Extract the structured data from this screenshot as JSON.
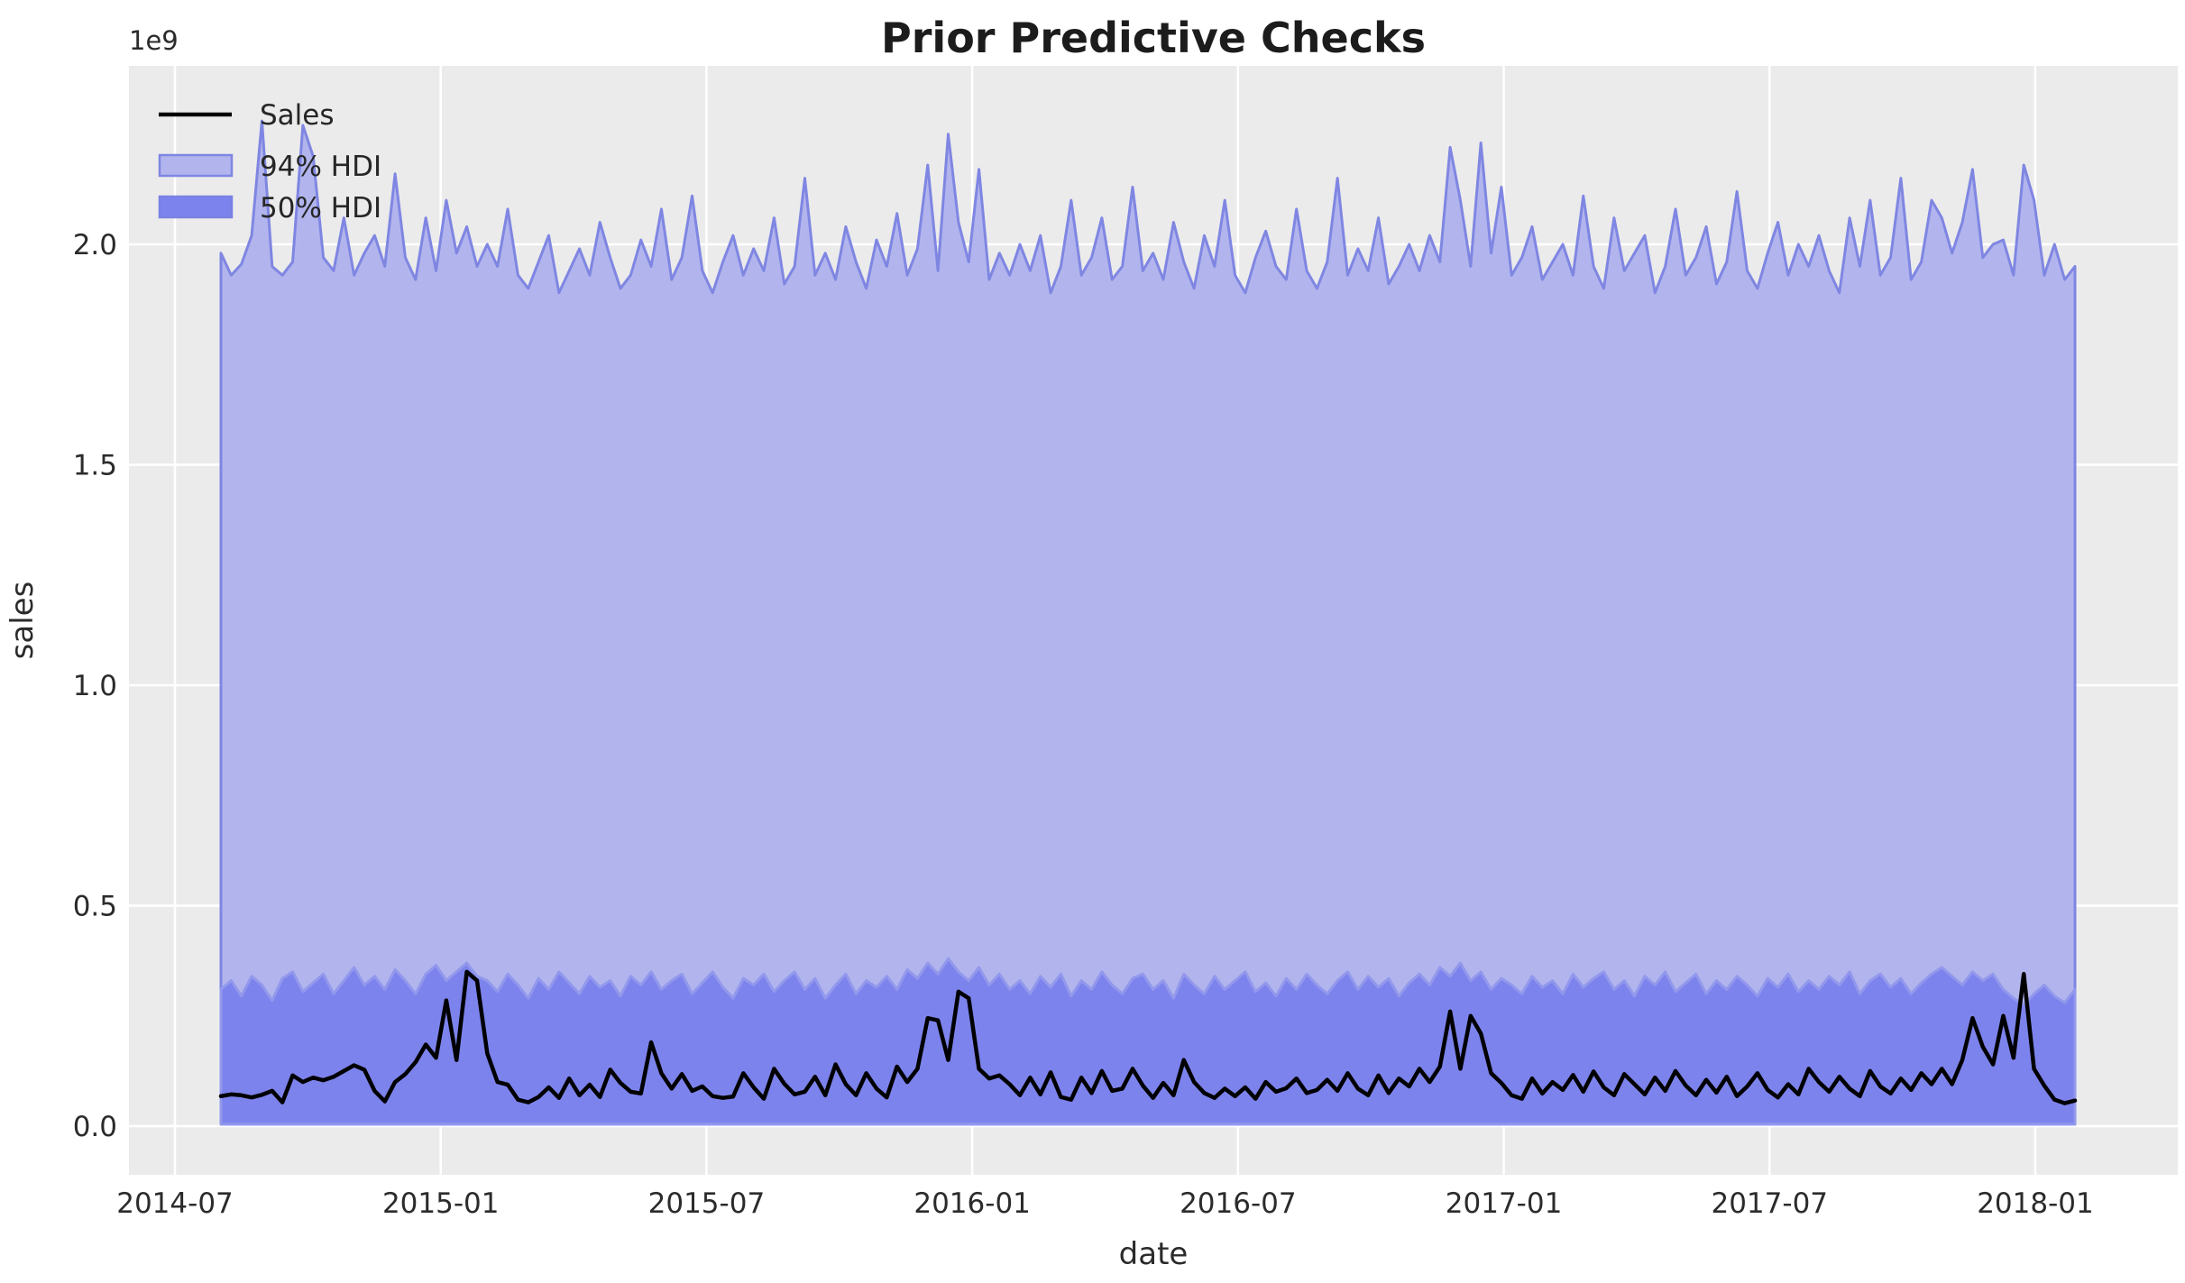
{
  "figure": {
    "background_color": "#ffffff",
    "axes_background_color": "#ebebeb",
    "gridline_color": "#ffffff"
  },
  "chart_data": {
    "type": "area",
    "title": "Prior Predictive Checks",
    "xlabel": "date",
    "ylabel": "sales",
    "y_offset_text": "1e9",
    "x_tick_labels": [
      "2014-07",
      "2015-01",
      "2015-07",
      "2016-01",
      "2016-07",
      "2017-01",
      "2017-07",
      "2018-01"
    ],
    "y_tick_labels": [
      "0.0",
      "0.5",
      "1.0",
      "1.5",
      "2.0"
    ],
    "y_tick_values": [
      0,
      0.5,
      1.0,
      1.5,
      2.0
    ],
    "y_unit": "1e9",
    "ylim": [
      -0.11,
      2.4
    ],
    "x_range": [
      "2014-08",
      "2018-02"
    ],
    "frequency": "weekly",
    "grid": true,
    "legend_position": "upper left",
    "series": [
      {
        "name": "Sales",
        "type": "line",
        "color": "#000000",
        "values": [
          0.068,
          0.072,
          0.07,
          0.065,
          0.071,
          0.08,
          0.054,
          0.115,
          0.1,
          0.11,
          0.104,
          0.112,
          0.125,
          0.138,
          0.128,
          0.08,
          0.056,
          0.1,
          0.118,
          0.145,
          0.185,
          0.155,
          0.285,
          0.15,
          0.35,
          0.33,
          0.165,
          0.1,
          0.094,
          0.06,
          0.054,
          0.066,
          0.088,
          0.064,
          0.108,
          0.07,
          0.094,
          0.066,
          0.128,
          0.098,
          0.078,
          0.074,
          0.19,
          0.12,
          0.085,
          0.118,
          0.08,
          0.09,
          0.068,
          0.064,
          0.067,
          0.12,
          0.088,
          0.062,
          0.13,
          0.096,
          0.072,
          0.078,
          0.112,
          0.07,
          0.14,
          0.095,
          0.07,
          0.12,
          0.085,
          0.065,
          0.135,
          0.1,
          0.13,
          0.245,
          0.24,
          0.15,
          0.305,
          0.29,
          0.13,
          0.108,
          0.115,
          0.095,
          0.07,
          0.11,
          0.072,
          0.122,
          0.066,
          0.06,
          0.11,
          0.075,
          0.125,
          0.08,
          0.085,
          0.13,
          0.092,
          0.064,
          0.098,
          0.07,
          0.15,
          0.1,
          0.075,
          0.064,
          0.085,
          0.068,
          0.088,
          0.062,
          0.1,
          0.078,
          0.086,
          0.108,
          0.075,
          0.082,
          0.105,
          0.08,
          0.12,
          0.085,
          0.07,
          0.115,
          0.075,
          0.108,
          0.09,
          0.13,
          0.1,
          0.135,
          0.26,
          0.13,
          0.25,
          0.21,
          0.12,
          0.098,
          0.07,
          0.062,
          0.108,
          0.074,
          0.1,
          0.082,
          0.116,
          0.078,
          0.124,
          0.088,
          0.07,
          0.118,
          0.095,
          0.072,
          0.11,
          0.08,
          0.125,
          0.092,
          0.07,
          0.105,
          0.076,
          0.112,
          0.068,
          0.09,
          0.12,
          0.082,
          0.065,
          0.095,
          0.072,
          0.13,
          0.1,
          0.078,
          0.112,
          0.085,
          0.068,
          0.125,
          0.09,
          0.074,
          0.108,
          0.082,
          0.12,
          0.095,
          0.13,
          0.095,
          0.15,
          0.245,
          0.18,
          0.14,
          0.25,
          0.155,
          0.345,
          0.13,
          0.092,
          0.06,
          0.052,
          0.058
        ]
      },
      {
        "name": "94% HDI",
        "type": "band",
        "fill_color": "#b2b5ed",
        "edge_color": "#7f86e2",
        "lower": 0.01,
        "upper": [
          1.98,
          1.93,
          1.955,
          2.02,
          2.28,
          1.95,
          1.93,
          1.96,
          2.27,
          2.2,
          1.97,
          1.94,
          2.06,
          1.93,
          1.98,
          2.02,
          1.95,
          2.16,
          1.97,
          1.92,
          2.06,
          1.94,
          2.1,
          1.98,
          2.04,
          1.95,
          2.0,
          1.95,
          2.08,
          1.93,
          1.9,
          1.96,
          2.02,
          1.89,
          1.94,
          1.99,
          1.93,
          2.05,
          1.97,
          1.9,
          1.93,
          2.01,
          1.95,
          2.08,
          1.92,
          1.97,
          2.11,
          1.94,
          1.89,
          1.96,
          2.02,
          1.93,
          1.99,
          1.94,
          2.06,
          1.91,
          1.95,
          2.15,
          1.93,
          1.98,
          1.92,
          2.04,
          1.96,
          1.9,
          2.01,
          1.95,
          2.07,
          1.93,
          1.99,
          2.18,
          1.94,
          2.25,
          2.05,
          1.96,
          2.17,
          1.92,
          1.98,
          1.93,
          2.0,
          1.94,
          2.02,
          1.89,
          1.95,
          2.1,
          1.93,
          1.97,
          2.06,
          1.92,
          1.95,
          2.13,
          1.94,
          1.98,
          1.92,
          2.05,
          1.96,
          1.9,
          2.02,
          1.95,
          2.1,
          1.93,
          1.89,
          1.97,
          2.03,
          1.95,
          1.92,
          2.08,
          1.94,
          1.9,
          1.96,
          2.15,
          1.93,
          1.99,
          1.94,
          2.06,
          1.91,
          1.95,
          2.0,
          1.94,
          2.02,
          1.96,
          2.22,
          2.1,
          1.95,
          2.23,
          1.98,
          2.13,
          1.93,
          1.97,
          2.04,
          1.92,
          1.96,
          2.0,
          1.93,
          2.11,
          1.95,
          1.9,
          2.06,
          1.94,
          1.98,
          2.02,
          1.89,
          1.95,
          2.08,
          1.93,
          1.97,
          2.04,
          1.91,
          1.96,
          2.12,
          1.94,
          1.9,
          1.98,
          2.05,
          1.93,
          2.0,
          1.95,
          2.02,
          1.94,
          1.89,
          2.06,
          1.95,
          2.1,
          1.93,
          1.97,
          2.15,
          1.92,
          1.96,
          2.1,
          2.06,
          1.98,
          2.05,
          2.17,
          1.97,
          2.0,
          2.01,
          1.93,
          2.18,
          2.1,
          1.93,
          2.0,
          1.92,
          1.95
        ]
      },
      {
        "name": "50% HDI",
        "type": "band",
        "fill_color": "#7d83ec",
        "edge_color": "#9298ec",
        "lower": 0.004,
        "upper": [
          0.31,
          0.33,
          0.295,
          0.34,
          0.32,
          0.285,
          0.335,
          0.35,
          0.305,
          0.325,
          0.345,
          0.3,
          0.33,
          0.36,
          0.32,
          0.34,
          0.31,
          0.355,
          0.33,
          0.3,
          0.345,
          0.365,
          0.33,
          0.35,
          0.37,
          0.34,
          0.33,
          0.305,
          0.345,
          0.32,
          0.29,
          0.335,
          0.31,
          0.35,
          0.325,
          0.3,
          0.34,
          0.315,
          0.33,
          0.295,
          0.34,
          0.32,
          0.35,
          0.31,
          0.33,
          0.345,
          0.3,
          0.325,
          0.35,
          0.315,
          0.29,
          0.335,
          0.32,
          0.345,
          0.305,
          0.33,
          0.35,
          0.31,
          0.335,
          0.29,
          0.32,
          0.345,
          0.3,
          0.33,
          0.315,
          0.34,
          0.31,
          0.355,
          0.335,
          0.37,
          0.345,
          0.38,
          0.35,
          0.33,
          0.36,
          0.32,
          0.345,
          0.31,
          0.33,
          0.3,
          0.34,
          0.315,
          0.345,
          0.295,
          0.33,
          0.31,
          0.35,
          0.32,
          0.3,
          0.335,
          0.345,
          0.31,
          0.33,
          0.29,
          0.345,
          0.32,
          0.3,
          0.34,
          0.31,
          0.33,
          0.35,
          0.305,
          0.325,
          0.295,
          0.335,
          0.31,
          0.345,
          0.32,
          0.3,
          0.33,
          0.35,
          0.31,
          0.34,
          0.315,
          0.335,
          0.295,
          0.325,
          0.345,
          0.32,
          0.36,
          0.34,
          0.37,
          0.33,
          0.35,
          0.31,
          0.335,
          0.32,
          0.3,
          0.34,
          0.315,
          0.33,
          0.3,
          0.345,
          0.315,
          0.335,
          0.35,
          0.31,
          0.33,
          0.295,
          0.34,
          0.32,
          0.35,
          0.305,
          0.325,
          0.345,
          0.3,
          0.33,
          0.31,
          0.34,
          0.32,
          0.295,
          0.335,
          0.315,
          0.345,
          0.305,
          0.33,
          0.31,
          0.34,
          0.32,
          0.35,
          0.3,
          0.33,
          0.345,
          0.315,
          0.335,
          0.3,
          0.325,
          0.345,
          0.36,
          0.34,
          0.32,
          0.35,
          0.33,
          0.345,
          0.31,
          0.29,
          0.275,
          0.3,
          0.32,
          0.295,
          0.28,
          0.31
        ]
      }
    ]
  }
}
